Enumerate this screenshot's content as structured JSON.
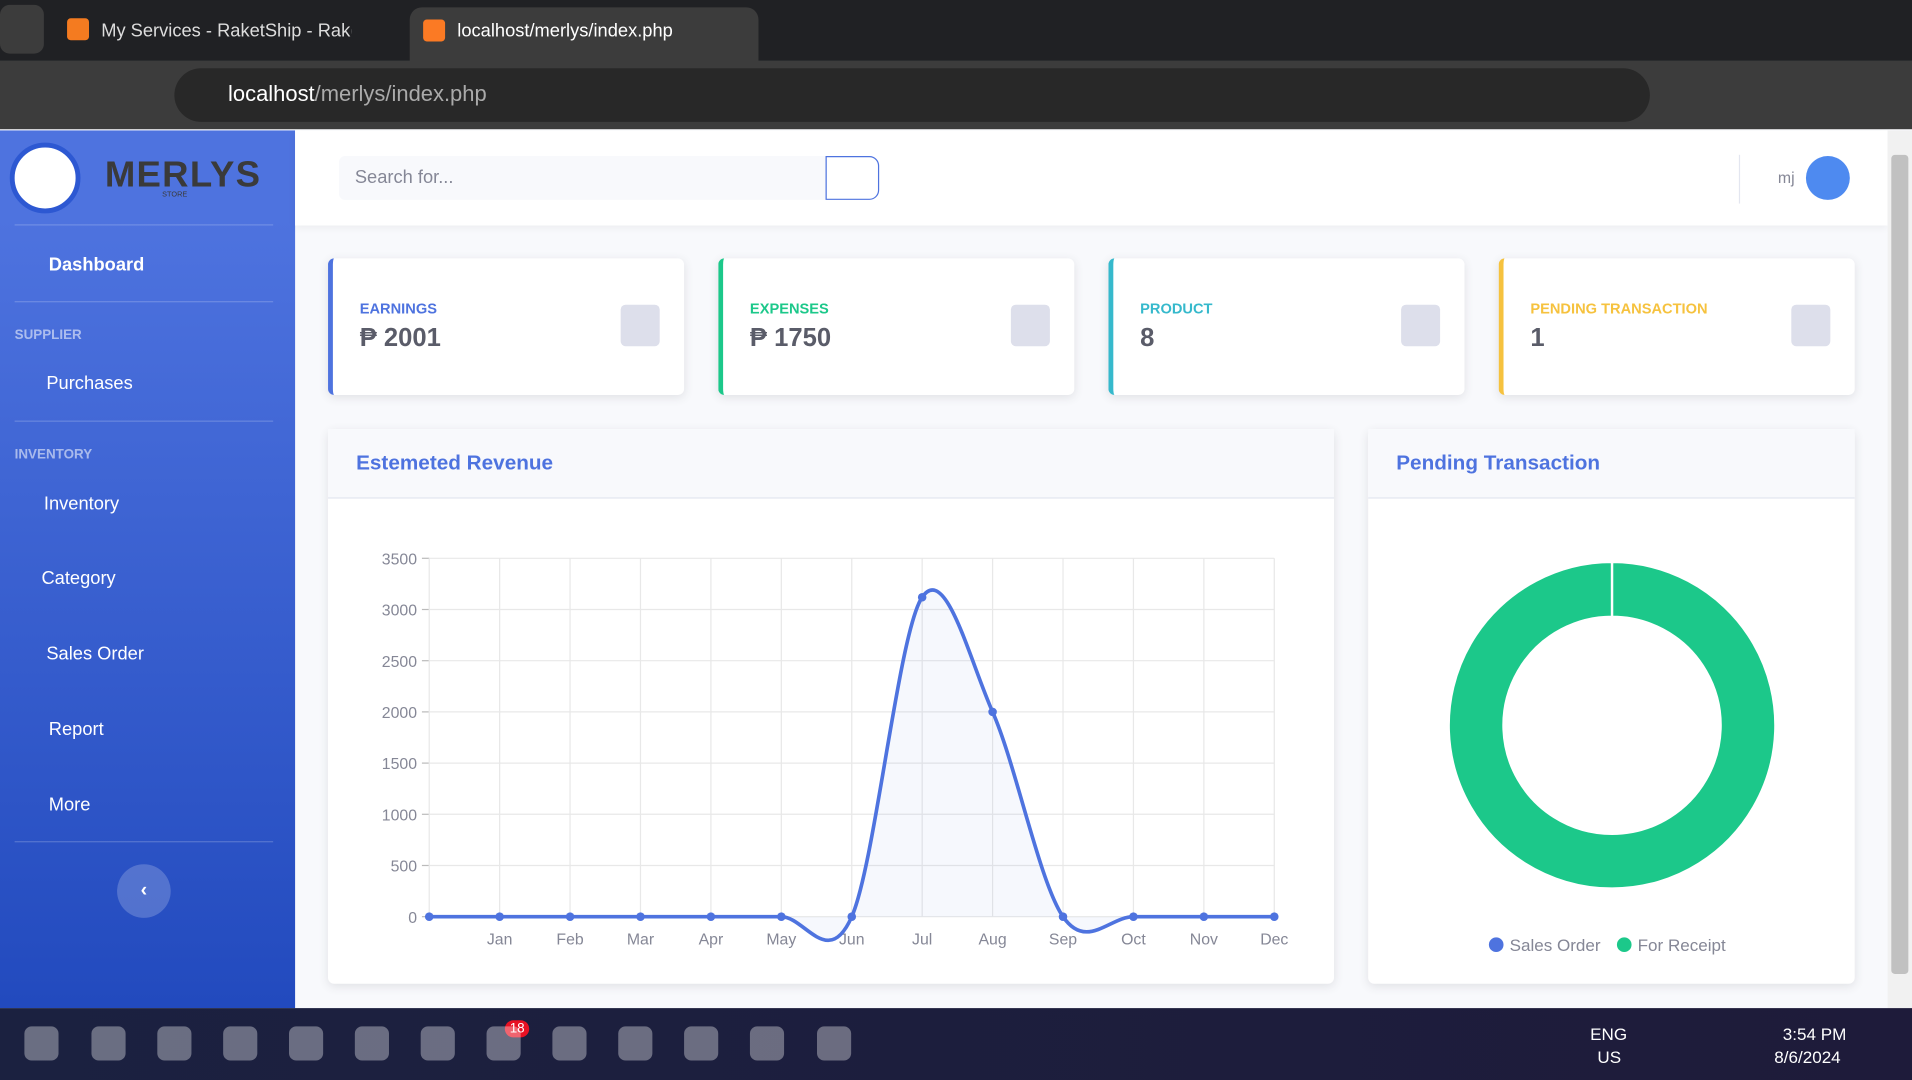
{
  "browser": {
    "tabs": [
      {
        "title": "My Services - RaketShip - Raket"
      },
      {
        "title": "localhost/merlys/index.php"
      }
    ],
    "url": {
      "host": "localhost",
      "path": "/merlys/index.php"
    }
  },
  "sidebar": {
    "brand": "MERLYS",
    "brand_sub": "STORE",
    "dashboard": "Dashboard",
    "heading_supplier": "SUPPLIER",
    "purchases": "Purchases",
    "heading_inventory": "INVENTORY",
    "inventory": "Inventory",
    "category": "Category",
    "sales_order": "Sales Order",
    "report": "Report",
    "more": "More"
  },
  "topbar": {
    "search_placeholder": "Search for...",
    "user": "mj"
  },
  "cards": [
    {
      "label": "EARNINGS",
      "value": "₱ 2001"
    },
    {
      "label": "EXPENSES",
      "value": "₱ 1750"
    },
    {
      "label": "PRODUCT",
      "value": "8"
    },
    {
      "label": "PENDING TRANSACTION",
      "value": "1"
    }
  ],
  "chart_data": [
    {
      "type": "line",
      "title": "Estemeted Revenue",
      "categories": [
        null,
        "Jan",
        "Feb",
        "Mar",
        "Apr",
        "May",
        "Jun",
        "Jul",
        "Aug",
        "Sep",
        "Oct",
        "Nov",
        "Dec"
      ],
      "series": [
        {
          "name": "Revenue",
          "color": "#4e73df",
          "values": [
            0,
            0,
            0,
            0,
            0,
            0,
            0,
            3120,
            2000,
            0,
            0,
            0,
            0
          ]
        }
      ],
      "ylim": [
        0,
        3500
      ],
      "yticks": [
        0,
        500,
        1000,
        1500,
        2000,
        2500,
        3000,
        3500
      ],
      "grid": true
    },
    {
      "type": "pie",
      "title": "Pending Transaction",
      "categories": [
        "Sales Order",
        "For Receipt"
      ],
      "values": [
        0,
        1
      ],
      "colors": [
        "#4e73df",
        "#1cc88a"
      ],
      "legend": "bottom"
    }
  ],
  "taskbar": {
    "badge": "18",
    "lang": "ENG",
    "region": "US",
    "time": "3:54 PM",
    "date": "8/6/2024"
  }
}
